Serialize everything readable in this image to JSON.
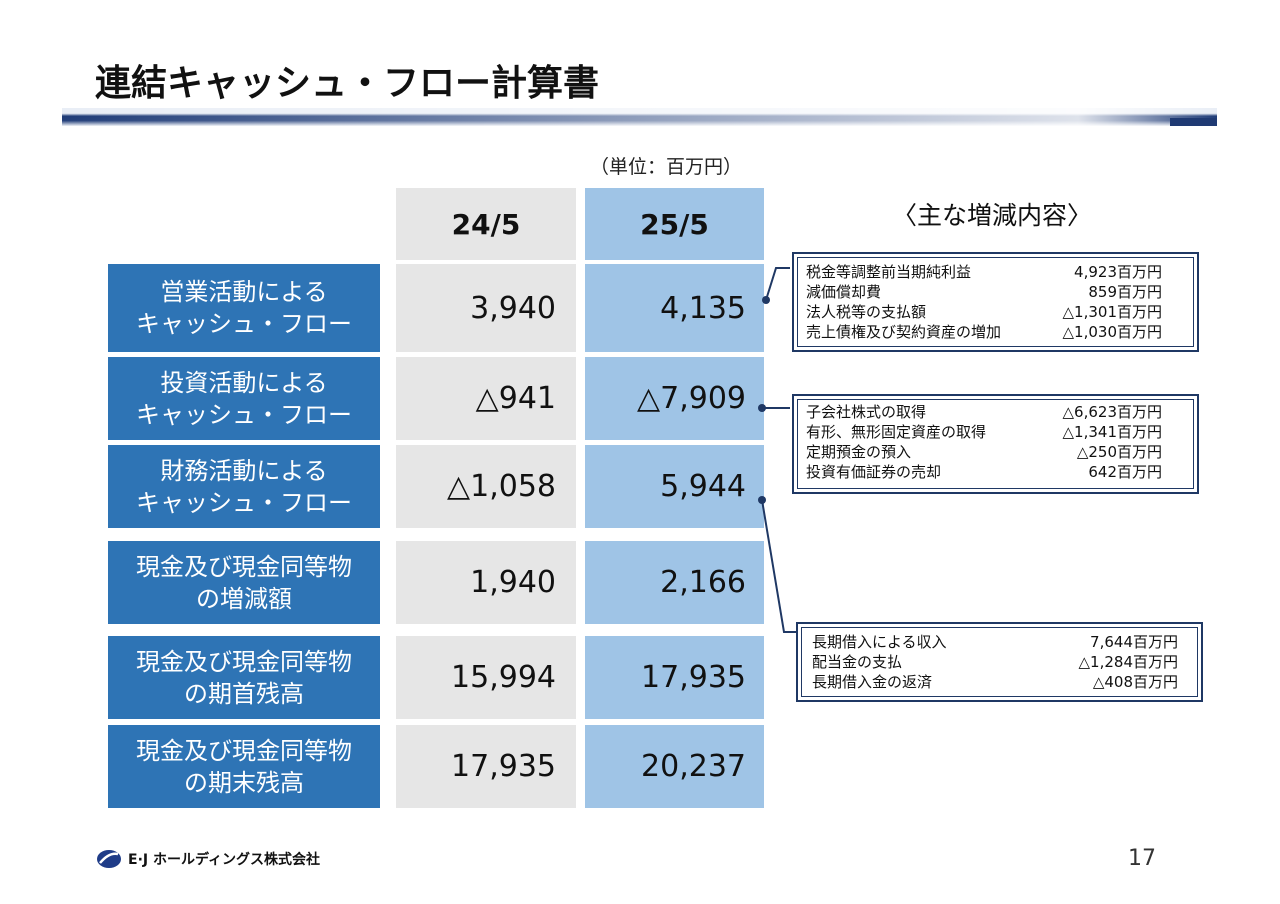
{
  "title": "連結キャッシュ・フロー計算書",
  "unit": "（単位：百万円）",
  "columns": {
    "prev": "24/5",
    "curr": "25/5"
  },
  "main_changes_heading": "〈主な増減内容〉",
  "rows": [
    {
      "label": "営業活動による\nキャッシュ・フロー",
      "prev": "3,940",
      "curr": "4,135"
    },
    {
      "label": "投資活動による\nキャッシュ・フロー",
      "prev": "△941",
      "curr": "△7,909"
    },
    {
      "label": "財務活動による\nキャッシュ・フロー",
      "prev": "△1,058",
      "curr": "5,944"
    },
    {
      "label": "現金及び現金同等物\nの増減額",
      "prev": "1,940",
      "curr": "2,166"
    },
    {
      "label": "現金及び現金同等物\nの期首残高",
      "prev": "15,994",
      "curr": "17,935"
    },
    {
      "label": "現金及び現金同等物\nの期末残高",
      "prev": "17,935",
      "curr": "20,237"
    }
  ],
  "boxes": {
    "operating": [
      {
        "item": "税金等調整前当期純利益",
        "value": "4,923百万円"
      },
      {
        "item": "減価償却費",
        "value": "859百万円"
      },
      {
        "item": "法人税等の支払額",
        "value": "△1,301百万円"
      },
      {
        "item": "売上債権及び契約資産の増加",
        "value": "△1,030百万円"
      }
    ],
    "investing": [
      {
        "item": "子会社株式の取得",
        "value": "△6,623百万円"
      },
      {
        "item": "有形、無形固定資産の取得",
        "value": "△1,341百万円"
      },
      {
        "item": "定期預金の預入",
        "value": "△250百万円"
      },
      {
        "item": "投資有価証券の売却",
        "value": "642百万円"
      }
    ],
    "financing": [
      {
        "item": "長期借入による収入",
        "value": "7,644百万円"
      },
      {
        "item": "配当金の支払",
        "value": "△1,284百万円"
      },
      {
        "item": "長期借入金の返済",
        "value": "△408百万円"
      }
    ]
  },
  "footer": {
    "company": "E·J ホールディングス株式会社",
    "page": "17"
  },
  "colors": {
    "label_bg": "#2e74b5",
    "prev_bg": "#e6e6e6",
    "curr_bg": "#9fc4e6",
    "box_border": "#1f3864"
  }
}
